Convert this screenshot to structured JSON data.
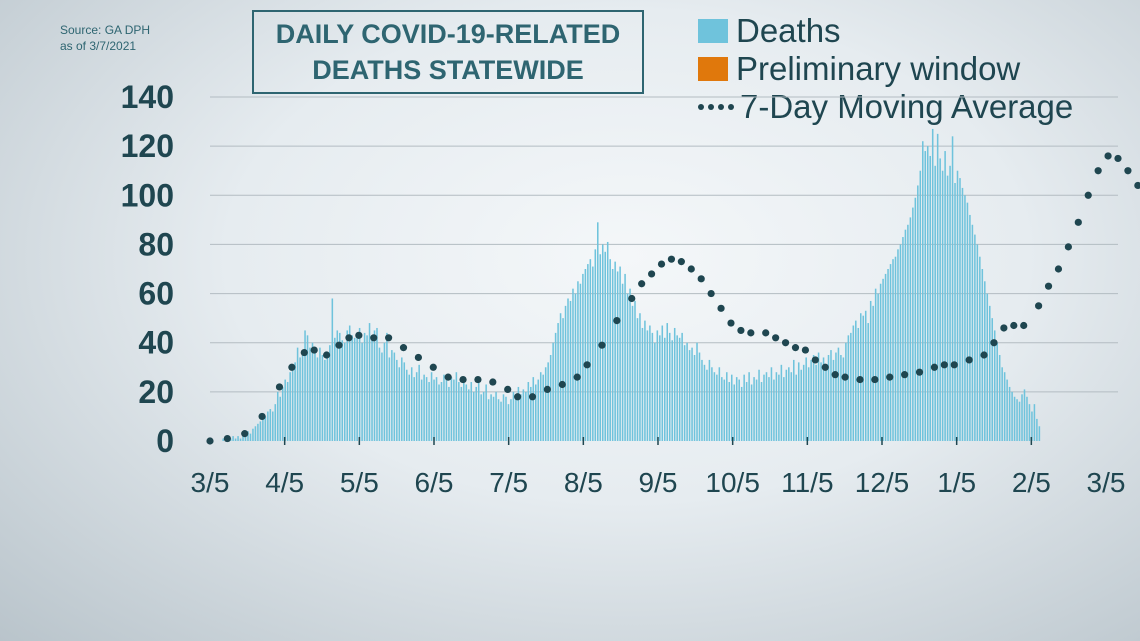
{
  "source": {
    "line1": "Source: GA DPH",
    "line2": "as of 3/7/2021"
  },
  "colors": {
    "deaths": "#6fc3dc",
    "preliminary": "#e0780c",
    "avg": "#1f4650",
    "text": "#1f4650"
  },
  "chart_data": {
    "type": "bar",
    "title": [
      "DAILY COVID-19-RELATED",
      "DEATHS STATEWIDE"
    ],
    "legend": [
      {
        "name": "Deaths",
        "icon": "swatch",
        "color": "#6fc3dc"
      },
      {
        "name": "Preliminary window",
        "icon": "swatch",
        "color": "#e0780c"
      },
      {
        "name": "7-Day Moving Average",
        "icon": "dots",
        "color": "#1f4650"
      }
    ],
    "legend_position": "top-right",
    "grid": true,
    "ylim": [
      0,
      140
    ],
    "yticks": [
      0,
      20,
      40,
      60,
      80,
      100,
      120,
      140
    ],
    "xticks": [
      "3/5",
      "4/5",
      "5/5",
      "6/5",
      "7/5",
      "8/5",
      "9/5",
      "10/5",
      "11/5",
      "12/5",
      "1/5",
      "2/5",
      "3/5"
    ],
    "days": 366,
    "preliminary_start_day": 355,
    "series": [
      {
        "name": "7-Day Moving Average",
        "points": [
          [
            0,
            0
          ],
          [
            7,
            1
          ],
          [
            14,
            3
          ],
          [
            21,
            10
          ],
          [
            28,
            22
          ],
          [
            33,
            30
          ],
          [
            38,
            36
          ],
          [
            42,
            37
          ],
          [
            47,
            35
          ],
          [
            52,
            39
          ],
          [
            56,
            42
          ],
          [
            60,
            43
          ],
          [
            66,
            42
          ],
          [
            72,
            42
          ],
          [
            78,
            38
          ],
          [
            84,
            34
          ],
          [
            90,
            30
          ],
          [
            96,
            26
          ],
          [
            102,
            25
          ],
          [
            108,
            25
          ],
          [
            114,
            24
          ],
          [
            120,
            21
          ],
          [
            124,
            18
          ],
          [
            130,
            18
          ],
          [
            136,
            21
          ],
          [
            142,
            23
          ],
          [
            148,
            26
          ],
          [
            152,
            31
          ],
          [
            158,
            39
          ],
          [
            164,
            49
          ],
          [
            170,
            58
          ],
          [
            174,
            64
          ],
          [
            178,
            68
          ],
          [
            182,
            72
          ],
          [
            186,
            74
          ],
          [
            190,
            73
          ],
          [
            194,
            70
          ],
          [
            198,
            66
          ],
          [
            202,
            60
          ],
          [
            206,
            54
          ],
          [
            210,
            48
          ],
          [
            214,
            45
          ],
          [
            218,
            44
          ],
          [
            224,
            44
          ],
          [
            228,
            42
          ],
          [
            232,
            40
          ],
          [
            236,
            38
          ],
          [
            240,
            37
          ],
          [
            244,
            33
          ],
          [
            248,
            30
          ],
          [
            252,
            27
          ],
          [
            256,
            26
          ],
          [
            262,
            25
          ],
          [
            268,
            25
          ],
          [
            274,
            26
          ],
          [
            280,
            27
          ],
          [
            286,
            28
          ],
          [
            292,
            30
          ],
          [
            296,
            31
          ],
          [
            300,
            31
          ],
          [
            306,
            33
          ],
          [
            312,
            35
          ],
          [
            316,
            40
          ],
          [
            320,
            46
          ],
          [
            324,
            47
          ],
          [
            328,
            47
          ],
          [
            334,
            55
          ],
          [
            338,
            63
          ],
          [
            342,
            70
          ],
          [
            346,
            79
          ],
          [
            350,
            89
          ],
          [
            354,
            100
          ],
          [
            358,
            110
          ],
          [
            362,
            116
          ],
          [
            366,
            115
          ],
          [
            370,
            110
          ],
          [
            374,
            104
          ],
          [
            378,
            105
          ],
          [
            382,
            100
          ]
        ]
      },
      {
        "name": "Deaths",
        "values": [
          0,
          0,
          0,
          0,
          0,
          1,
          0,
          0,
          1,
          2,
          1,
          2,
          1,
          3,
          3,
          4,
          3,
          5,
          6,
          7,
          8,
          9,
          10,
          12,
          13,
          12,
          15,
          20,
          18,
          22,
          25,
          24,
          28,
          30,
          32,
          38,
          34,
          36,
          45,
          43,
          38,
          40,
          36,
          34,
          38,
          35,
          33,
          36,
          39,
          58,
          42,
          45,
          44,
          41,
          40,
          45,
          47,
          43,
          42,
          44,
          46,
          40,
          44,
          43,
          48,
          41,
          45,
          46,
          38,
          36,
          40,
          44,
          34,
          37,
          36,
          33,
          30,
          34,
          32,
          29,
          27,
          30,
          26,
          28,
          31,
          25,
          27,
          26,
          24,
          28,
          25,
          26,
          23,
          24,
          27,
          25,
          22,
          26,
          25,
          28,
          24,
          22,
          26,
          23,
          21,
          24,
          20,
          22,
          25,
          19,
          20,
          23,
          17,
          19,
          18,
          20,
          17,
          16,
          19,
          18,
          15,
          17,
          20,
          18,
          22,
          19,
          21,
          20,
          24,
          22,
          26,
          23,
          25,
          28,
          27,
          30,
          32,
          35,
          40,
          44,
          48,
          52,
          50,
          55,
          58,
          57,
          62,
          60,
          65,
          64,
          68,
          70,
          72,
          74,
          71,
          78,
          89,
          76,
          80,
          77,
          81,
          74,
          70,
          73,
          69,
          71,
          64,
          68,
          60,
          62,
          55,
          57,
          50,
          52,
          46,
          49,
          45,
          47,
          44,
          40,
          45,
          43,
          47,
          42,
          48,
          44,
          41,
          46,
          43,
          42,
          44,
          39,
          40,
          37,
          38,
          35,
          40,
          36,
          33,
          31,
          29,
          33,
          30,
          28,
          27,
          30,
          26,
          25,
          28,
          24,
          27,
          23,
          26,
          25,
          22,
          27,
          24,
          28,
          23,
          26,
          25,
          29,
          24,
          27,
          28,
          26,
          30,
          25,
          28,
          27,
          31,
          26,
          29,
          30,
          28,
          33,
          27,
          32,
          29,
          31,
          34,
          30,
          33,
          35,
          31,
          36,
          32,
          34,
          30,
          35,
          37,
          33,
          36,
          38,
          35,
          34,
          40,
          43,
          44,
          47,
          49,
          46,
          52,
          51,
          53,
          48,
          57,
          55,
          62,
          60,
          64,
          66,
          68,
          70,
          72,
          74,
          75,
          78,
          80,
          83,
          86,
          88,
          91,
          95,
          99,
          104,
          110,
          122,
          118,
          120,
          116,
          127,
          112,
          125,
          115,
          110,
          118,
          108,
          112,
          124,
          105,
          110,
          107,
          103,
          100,
          97,
          92,
          88,
          84,
          80,
          75,
          70,
          65,
          60,
          55,
          50,
          45,
          40,
          35,
          30,
          28,
          25,
          22,
          20,
          18,
          17,
          16,
          19,
          21,
          18,
          15,
          12,
          15,
          9,
          6
        ]
      }
    ]
  }
}
